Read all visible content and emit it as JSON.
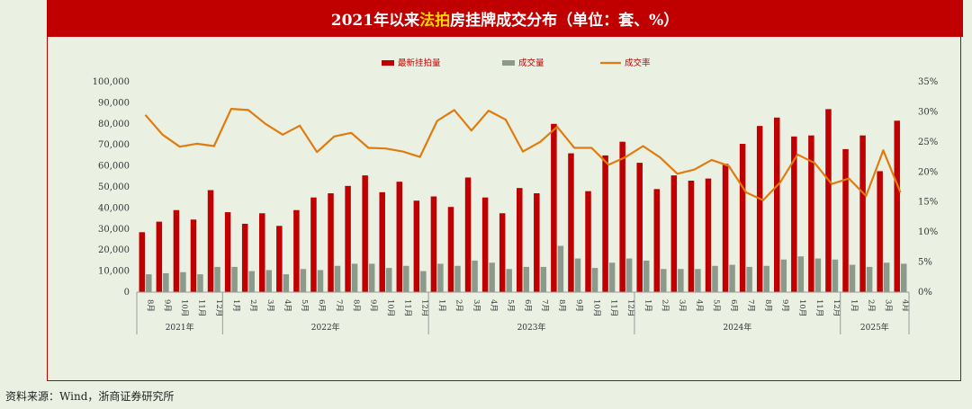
{
  "title": {
    "prefix": "2021年以来",
    "highlight": "法拍",
    "suffix": "房挂牌成交分布（单位：套、%）"
  },
  "source": "资料来源：Wind，浙商证券研究所",
  "colors": {
    "listing": "#c00000",
    "deal": "#8c9a8c",
    "rate": "#e07b10",
    "title_bg": "#c00000",
    "highlight": "#ffd700"
  },
  "chart_data": {
    "type": "bar",
    "categories": [
      "8月",
      "9月",
      "10月",
      "11月",
      "12月",
      "1月",
      "2月",
      "3月",
      "4月",
      "5月",
      "6月",
      "7月",
      "8月",
      "9月",
      "10月",
      "11月",
      "12月",
      "1月",
      "2月",
      "3月",
      "4月",
      "5月",
      "6月",
      "7月",
      "8月",
      "9月",
      "10月",
      "11月",
      "12月",
      "1月",
      "2月",
      "3月",
      "4月",
      "5月",
      "6月",
      "7月",
      "8月",
      "9月",
      "10月",
      "11月",
      "12月",
      "1月",
      "2月",
      "3月",
      "4月"
    ],
    "year_groups": [
      {
        "label": "2021年",
        "count": 5
      },
      {
        "label": "2022年",
        "count": 12
      },
      {
        "label": "2023年",
        "count": 12
      },
      {
        "label": "2024年",
        "count": 12
      },
      {
        "label": "2025年",
        "count": 4
      }
    ],
    "series": [
      {
        "name": "最新挂拍量",
        "type": "bar",
        "axis": "left",
        "values": [
          28500,
          33500,
          39000,
          34500,
          48500,
          38000,
          32500,
          37500,
          31500,
          39000,
          45000,
          47000,
          50500,
          55500,
          47500,
          52500,
          43500,
          45500,
          40500,
          54500,
          45000,
          37500,
          49500,
          47000,
          80000,
          66000,
          48000,
          65000,
          71500,
          61500,
          49000,
          55500,
          53000,
          54000,
          61000,
          70500,
          79000,
          83000,
          74000,
          74500,
          87000,
          68000,
          74500,
          57500,
          81500
        ]
      },
      {
        "name": "成交量",
        "type": "bar",
        "axis": "left",
        "values": [
          8500,
          9000,
          9500,
          8500,
          12000,
          12000,
          10000,
          10500,
          8500,
          11000,
          10500,
          12500,
          13500,
          13500,
          11500,
          12500,
          10000,
          13500,
          12500,
          15000,
          14000,
          11000,
          12000,
          12000,
          22000,
          16000,
          11500,
          14000,
          16000,
          15000,
          11000,
          11000,
          11000,
          12500,
          13000,
          12000,
          12500,
          15500,
          17000,
          16000,
          15500,
          13000,
          12000,
          14000,
          13500
        ]
      },
      {
        "name": "成交率",
        "type": "line",
        "axis": "right",
        "unit": "%",
        "values": [
          29.5,
          26.2,
          24.2,
          24.7,
          24.3,
          30.5,
          30.3,
          28.0,
          26.2,
          27.7,
          23.3,
          25.9,
          26.5,
          24.0,
          23.9,
          23.4,
          22.5,
          28.5,
          30.3,
          26.9,
          30.2,
          28.7,
          23.4,
          25.0,
          27.5,
          24.0,
          24.0,
          21.2,
          22.5,
          24.3,
          22.4,
          19.7,
          20.4,
          22.0,
          21.0,
          16.6,
          15.3,
          18.3,
          22.9,
          21.5,
          18.0,
          18.9,
          16.0,
          23.6,
          16.6
        ]
      }
    ],
    "y_left": {
      "min": 0,
      "max": 100000,
      "ticks": [
        "0",
        "10,000",
        "20,000",
        "30,000",
        "40,000",
        "50,000",
        "60,000",
        "70,000",
        "80,000",
        "90,000",
        "100,000"
      ]
    },
    "y_right": {
      "min": 0,
      "max": 35,
      "ticks": [
        "0%",
        "5%",
        "10%",
        "15%",
        "20%",
        "25%",
        "30%",
        "35%"
      ]
    },
    "legend_position": "top-center",
    "grid": false
  }
}
